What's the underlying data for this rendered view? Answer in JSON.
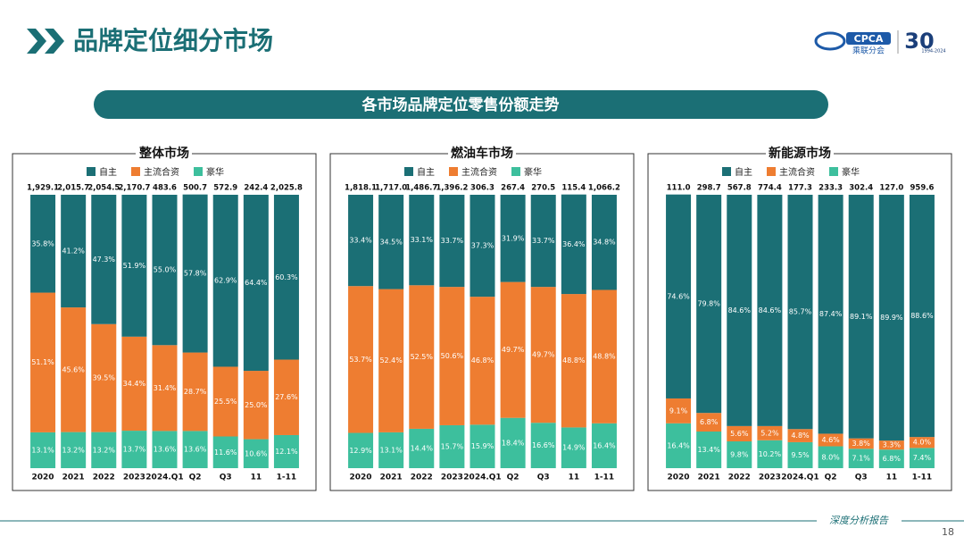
{
  "header": {
    "title": "品牌定位细分市场",
    "banner": "各市场品牌定位零售份额走势",
    "logo": "CPCA",
    "logo_sub": "乘联分会",
    "anniversary": "30",
    "anniversary_years": "1994-2024"
  },
  "footer": {
    "text": "深度分析报告",
    "page": "18"
  },
  "chart_data": [
    {
      "type": "bar",
      "stacked": true,
      "title": "整体市场",
      "categories": [
        "2020",
        "2021",
        "2022",
        "2023",
        "2024.Q1",
        "Q2",
        "Q3",
        "11",
        "1-11"
      ],
      "totals": [
        {
          "value": 1929.1,
          "label": "1,929.1"
        },
        {
          "value": 2015.7,
          "label": "2,015.7"
        },
        {
          "value": 2054.5,
          "label": "2,054.5"
        },
        {
          "value": 2170.7,
          "label": "2,170.7"
        },
        {
          "value": 483.6,
          "label": "483.6"
        },
        {
          "value": 500.7,
          "label": "500.7"
        },
        {
          "value": 572.9,
          "label": "572.9"
        },
        {
          "value": 242.4,
          "label": "242.4"
        },
        {
          "value": 2025.8,
          "label": "2,025.8"
        }
      ],
      "ylim": [
        0,
        100
      ],
      "series": [
        {
          "name": "自主",
          "color": "#1b6f75",
          "values": [
            35.8,
            41.2,
            47.3,
            51.9,
            55.0,
            57.8,
            62.9,
            64.4,
            60.3
          ],
          "value_labels": [
            "35.8%",
            "41.2%",
            "47.3%",
            "51.9%",
            "55.0%",
            "57.8%",
            "62.9%",
            "64.4%",
            "60.3%"
          ]
        },
        {
          "name": "主流合资",
          "color": "#ee7d31",
          "values": [
            51.1,
            45.6,
            39.5,
            34.4,
            31.4,
            28.7,
            25.5,
            25.0,
            27.6
          ],
          "value_labels": [
            "51.1%",
            "45.6%",
            "39.5%",
            "34.4%",
            "31.4%",
            "28.7%",
            "25.5%",
            "25.0%",
            "27.6%"
          ]
        },
        {
          "name": "豪华",
          "color": "#3dbf9d",
          "values": [
            13.1,
            13.2,
            13.2,
            13.7,
            13.6,
            13.6,
            11.6,
            10.6,
            12.1
          ],
          "value_labels": [
            "13.1%",
            "13.2%",
            "13.2%",
            "13.7%",
            "13.6%",
            "13.6%",
            "11.6%",
            "10.6%",
            "12.1%"
          ]
        }
      ]
    },
    {
      "type": "bar",
      "stacked": true,
      "title": "燃油车市场",
      "categories": [
        "2020",
        "2021",
        "2022",
        "2023",
        "2024.Q1",
        "Q2",
        "Q3",
        "11",
        "1-11"
      ],
      "totals": [
        {
          "value": 1818.1,
          "label": "1,818.1"
        },
        {
          "value": 1717.0,
          "label": "1,717.0"
        },
        {
          "value": 1486.7,
          "label": "1,486.7"
        },
        {
          "value": 1396.2,
          "label": "1,396.2"
        },
        {
          "value": 306.3,
          "label": "306.3"
        },
        {
          "value": 267.4,
          "label": "267.4"
        },
        {
          "value": 270.5,
          "label": "270.5"
        },
        {
          "value": 115.4,
          "label": "115.4"
        },
        {
          "value": 1066.2,
          "label": "1,066.2"
        }
      ],
      "ylim": [
        0,
        100
      ],
      "series": [
        {
          "name": "自主",
          "color": "#1b6f75",
          "values": [
            33.4,
            34.5,
            33.1,
            33.7,
            37.3,
            31.9,
            33.7,
            36.4,
            34.8
          ],
          "value_labels": [
            "33.4%",
            "34.5%",
            "33.1%",
            "33.7%",
            "37.3%",
            "31.9%",
            "33.7%",
            "36.4%",
            "34.8%"
          ]
        },
        {
          "name": "主流合资",
          "color": "#ee7d31",
          "values": [
            53.7,
            52.4,
            52.5,
            50.6,
            46.8,
            49.7,
            49.7,
            48.8,
            48.8
          ],
          "value_labels": [
            "53.7%",
            "52.4%",
            "52.5%",
            "50.6%",
            "46.8%",
            "49.7%",
            "49.7%",
            "48.8%",
            "48.8%"
          ]
        },
        {
          "name": "豪华",
          "color": "#3dbf9d",
          "values": [
            12.9,
            13.1,
            14.4,
            15.7,
            15.9,
            18.4,
            16.6,
            14.9,
            16.4
          ],
          "value_labels": [
            "12.9%",
            "13.1%",
            "14.4%",
            "15.7%",
            "15.9%",
            "18.4%",
            "16.6%",
            "14.9%",
            "16.4%"
          ]
        }
      ]
    },
    {
      "type": "bar",
      "stacked": true,
      "title": "新能源市场",
      "categories": [
        "2020",
        "2021",
        "2022",
        "2023",
        "2024.Q1",
        "Q2",
        "Q3",
        "11",
        "1-11"
      ],
      "totals": [
        {
          "value": 111.0,
          "label": "111.0"
        },
        {
          "value": 298.7,
          "label": "298.7"
        },
        {
          "value": 567.8,
          "label": "567.8"
        },
        {
          "value": 774.4,
          "label": "774.4"
        },
        {
          "value": 177.3,
          "label": "177.3"
        },
        {
          "value": 233.3,
          "label": "233.3"
        },
        {
          "value": 302.4,
          "label": "302.4"
        },
        {
          "value": 127.0,
          "label": "127.0"
        },
        {
          "value": 959.6,
          "label": "959.6"
        }
      ],
      "ylim": [
        0,
        100
      ],
      "series": [
        {
          "name": "自主",
          "color": "#1b6f75",
          "values": [
            74.6,
            79.8,
            84.6,
            84.6,
            85.7,
            87.4,
            89.1,
            89.9,
            88.6
          ],
          "value_labels": [
            "74.6%",
            "79.8%",
            "84.6%",
            "84.6%",
            "85.7%",
            "87.4%",
            "89.1%",
            "89.9%",
            "88.6%"
          ]
        },
        {
          "name": "主流合资",
          "color": "#ee7d31",
          "values": [
            9.1,
            6.8,
            5.6,
            5.2,
            4.8,
            4.6,
            3.8,
            3.3,
            4.0
          ],
          "value_labels": [
            "9.1%",
            "6.8%",
            "5.6%",
            "5.2%",
            "4.8%",
            "4.6%",
            "3.8%",
            "3.3%",
            "4.0%"
          ]
        },
        {
          "name": "豪华",
          "color": "#3dbf9d",
          "values": [
            16.4,
            13.4,
            9.8,
            10.2,
            9.5,
            8.0,
            7.1,
            6.8,
            7.4
          ],
          "value_labels": [
            "16.4%",
            "13.4%",
            "9.8%",
            "10.2%",
            "9.5%",
            "8.0%",
            "7.1%",
            "6.8%",
            "7.4%"
          ]
        }
      ]
    }
  ]
}
